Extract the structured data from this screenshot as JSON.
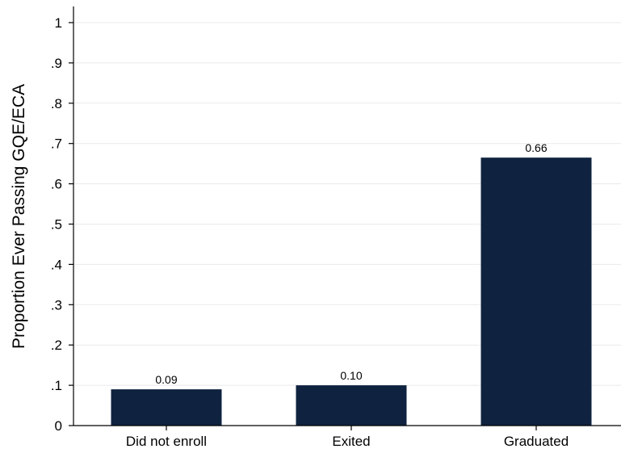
{
  "chart_data": {
    "type": "bar",
    "title": "",
    "xlabel": "",
    "ylabel": "Proportion Ever Passing GQE/ECA",
    "categories": [
      "Did not enroll",
      "Exited",
      "Graduated"
    ],
    "values": [
      0.09,
      0.1,
      0.665
    ],
    "value_labels": [
      "0.09",
      "0.10",
      "0.66"
    ],
    "ylim": [
      0,
      1
    ],
    "yticks": [
      0,
      0.1,
      0.2,
      0.3,
      0.4,
      0.5,
      0.6,
      0.7,
      0.8,
      0.9,
      1
    ],
    "ytick_labels": [
      "0",
      ".1",
      ".2",
      ".3",
      ".4",
      ".5",
      ".6",
      ".7",
      ".8",
      ".9",
      "1"
    ],
    "grid": true,
    "bar_color": "#0f2340",
    "grid_color": "#eaeaea"
  }
}
